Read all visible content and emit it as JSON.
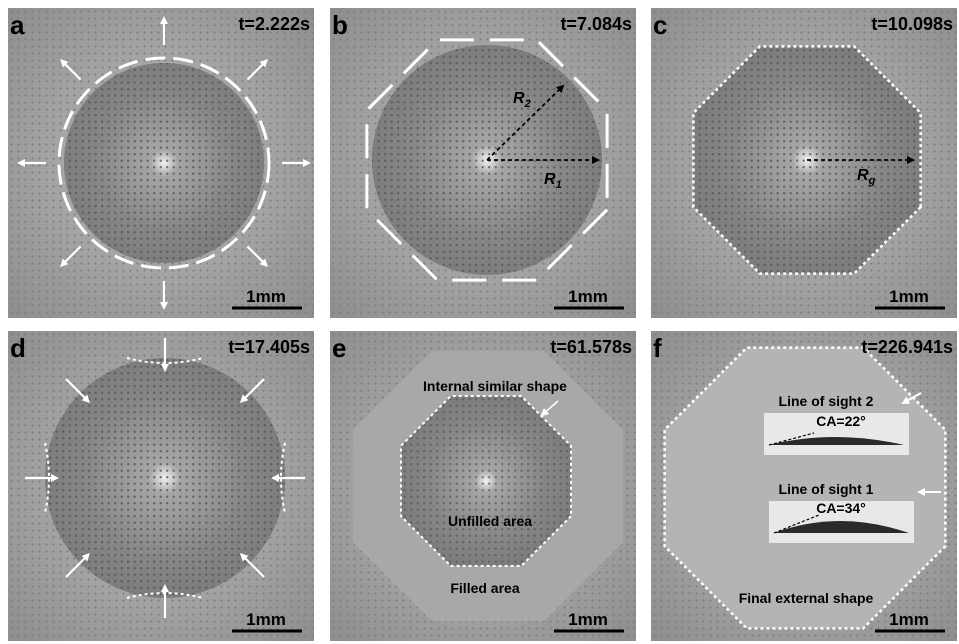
{
  "panels": [
    {
      "label": "a",
      "time": "t=2.222s",
      "scale": "1mm"
    },
    {
      "label": "b",
      "time": "t=7.084s",
      "scale": "1mm",
      "radii": [
        {
          "base": "R",
          "sub": "2"
        },
        {
          "base": "R",
          "sub": "1"
        }
      ]
    },
    {
      "label": "c",
      "time": "t=10.098s",
      "scale": "1mm",
      "radii": [
        {
          "base": "R",
          "sub": "g"
        }
      ]
    },
    {
      "label": "d",
      "time": "t=17.405s",
      "scale": "1mm"
    },
    {
      "label": "e",
      "time": "t=61.578s",
      "scale": "1mm",
      "annotations": [
        "Internal similar shape",
        "Unfilled area",
        "Filled area"
      ]
    },
    {
      "label": "f",
      "time": "t=226.941s",
      "scale": "1mm",
      "annotations": [
        "Line of sight 2",
        "CA=22°",
        "Line of sight 1",
        "CA=34°",
        "Final external shape"
      ]
    }
  ]
}
